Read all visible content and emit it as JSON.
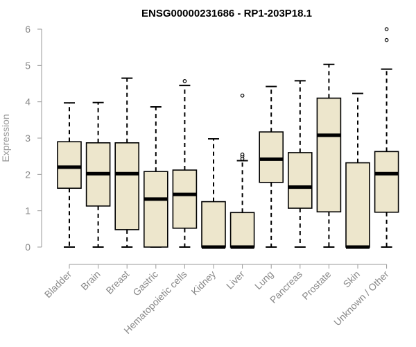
{
  "chart_data": {
    "type": "boxplot",
    "title": "ENSG00000231686 - RP1-203P18.1",
    "xlabel": "",
    "ylabel": "Expression",
    "ylim": [
      0,
      6
    ],
    "yticks": [
      0,
      1,
      2,
      3,
      4,
      5,
      6
    ],
    "grid": false,
    "box_fill": "#ede6cc",
    "box_stroke": "#000000",
    "categories": [
      "Bladder",
      "Brain",
      "Breast",
      "Gastric",
      "Hematopoietic cells",
      "Kidney",
      "Liver",
      "Lung",
      "Pancreas",
      "Prostate",
      "Skin",
      "Unknown / Other"
    ],
    "boxes": [
      {
        "category": "Bladder",
        "whisker_low": 0,
        "q1": 1.62,
        "median": 2.2,
        "q3": 2.9,
        "whisker_high": 3.97,
        "outliers": []
      },
      {
        "category": "Brain",
        "whisker_low": 0,
        "q1": 1.13,
        "median": 2.02,
        "q3": 2.87,
        "whisker_high": 3.98,
        "outliers": []
      },
      {
        "category": "Breast",
        "whisker_low": 0,
        "q1": 0.48,
        "median": 2.02,
        "q3": 2.87,
        "whisker_high": 4.65,
        "outliers": []
      },
      {
        "category": "Gastric",
        "whisker_low": 0,
        "q1": 0,
        "median": 1.32,
        "q3": 2.08,
        "whisker_high": 3.86,
        "outliers": []
      },
      {
        "category": "Hematopoietic cells",
        "whisker_low": 0,
        "q1": 0.52,
        "median": 1.45,
        "q3": 2.12,
        "whisker_high": 4.45,
        "outliers": [
          4.57
        ]
      },
      {
        "category": "Kidney",
        "whisker_low": 0,
        "q1": 0,
        "median": 0,
        "q3": 1.25,
        "whisker_high": 2.98,
        "outliers": []
      },
      {
        "category": "Liver",
        "whisker_low": 0,
        "q1": 0,
        "median": 0,
        "q3": 0.95,
        "whisker_high": 2.38,
        "outliers": [
          2.43,
          2.5,
          2.55,
          4.17
        ]
      },
      {
        "category": "Lung",
        "whisker_low": 0,
        "q1": 1.78,
        "median": 2.42,
        "q3": 3.17,
        "whisker_high": 4.42,
        "outliers": []
      },
      {
        "category": "Pancreas",
        "whisker_low": 0,
        "q1": 1.07,
        "median": 1.65,
        "q3": 2.6,
        "whisker_high": 4.58,
        "outliers": []
      },
      {
        "category": "Prostate",
        "whisker_low": 0,
        "q1": 0.97,
        "median": 3.08,
        "q3": 4.1,
        "whisker_high": 5.03,
        "outliers": []
      },
      {
        "category": "Skin",
        "whisker_low": 0,
        "q1": 0,
        "median": 0,
        "q3": 2.32,
        "whisker_high": 4.23,
        "outliers": []
      },
      {
        "category": "Unknown / Other",
        "whisker_low": 0,
        "q1": 0.96,
        "median": 2.02,
        "q3": 2.63,
        "whisker_high": 4.9,
        "outliers": [
          5.7,
          6.0
        ]
      }
    ]
  }
}
